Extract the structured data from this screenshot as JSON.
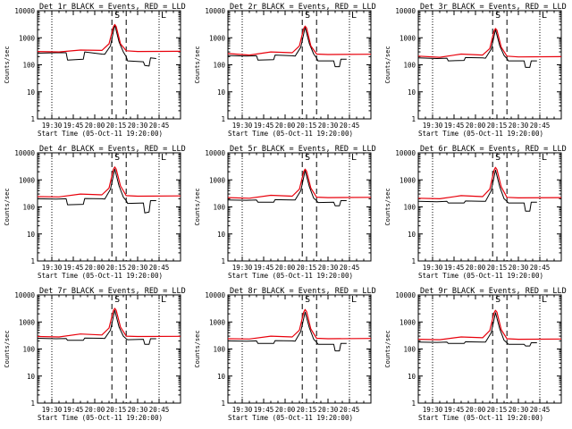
{
  "common": {
    "ylabel": "Counts/sec",
    "xlabel": "Start Time (05-Oct-11 19:20:00)",
    "title_suffix": "BLACK = Events, RED = LLD",
    "marker_letters": [
      "S",
      "L"
    ],
    "colors": {
      "events": "#000000",
      "lld": "#e8000b",
      "axis": "#000000"
    },
    "yscale": "log",
    "ylim": [
      1,
      10000
    ],
    "ytick_labels": [
      "1",
      "10",
      "100",
      "1000",
      "10000"
    ],
    "xtick_labels": [
      "19:30",
      "19:45",
      "20:00",
      "20:15",
      "20:30",
      "20:45"
    ],
    "dotted_lines": [
      "19:30",
      "20:45"
    ],
    "dashed_lines": [
      "20:12",
      "20:22"
    ]
  },
  "chart_data": [
    {
      "type": "line",
      "title": "Det 1r BLACK = Events, RED = LLD",
      "series": [
        {
          "name": "Events",
          "x": [
            "19:20",
            "19:33",
            "19:40",
            "19:41",
            "19:52",
            "19:53",
            "20:05",
            "20:07",
            "20:11",
            "20:14",
            "20:17",
            "20:20",
            "20:22",
            "20:23",
            "20:34",
            "20:35",
            "20:38",
            "20:39",
            "20:43"
          ],
          "values": [
            270,
            280,
            280,
            150,
            160,
            300,
            250,
            245,
            500,
            3000,
            700,
            300,
            200,
            140,
            130,
            95,
            90,
            180,
            170
          ]
        },
        {
          "name": "LLD",
          "x": [
            "19:20",
            "19:35",
            "19:50",
            "20:05",
            "20:10",
            "20:13",
            "20:14",
            "20:15",
            "20:18",
            "20:22",
            "20:30",
            "21:00"
          ],
          "values": [
            310,
            300,
            350,
            340,
            600,
            2500,
            3100,
            2600,
            600,
            330,
            310,
            315
          ]
        }
      ]
    },
    {
      "type": "line",
      "title": "Det 2r BLACK = Events, RED = LLD",
      "series": [
        {
          "name": "Events",
          "x": [
            "19:20",
            "19:33",
            "19:40",
            "19:41",
            "19:52",
            "19:53",
            "20:05",
            "20:07",
            "20:11",
            "20:14",
            "20:17",
            "20:20",
            "20:22",
            "20:23",
            "20:34",
            "20:35",
            "20:38",
            "20:39",
            "20:43"
          ],
          "values": [
            220,
            210,
            215,
            150,
            155,
            230,
            215,
            210,
            450,
            2400,
            600,
            250,
            180,
            140,
            140,
            85,
            85,
            160,
            160
          ]
        },
        {
          "name": "LLD",
          "x": [
            "19:20",
            "19:35",
            "19:50",
            "20:05",
            "20:10",
            "20:13",
            "20:14",
            "20:15",
            "20:18",
            "20:22",
            "20:30",
            "21:00"
          ],
          "values": [
            260,
            230,
            300,
            280,
            500,
            2200,
            2700,
            2300,
            500,
            250,
            240,
            245
          ]
        }
      ]
    },
    {
      "type": "line",
      "title": "Det 3r BLACK = Events, RED = LLD",
      "series": [
        {
          "name": "Events",
          "x": [
            "19:20",
            "19:33",
            "19:40",
            "19:41",
            "19:52",
            "19:53",
            "20:05",
            "20:07",
            "20:11",
            "20:14",
            "20:17",
            "20:20",
            "20:22",
            "20:23",
            "20:34",
            "20:35",
            "20:38",
            "20:39",
            "20:43"
          ],
          "values": [
            180,
            170,
            175,
            140,
            145,
            185,
            180,
            175,
            380,
            2000,
            500,
            220,
            170,
            140,
            140,
            80,
            80,
            140,
            140
          ]
        },
        {
          "name": "LLD",
          "x": [
            "19:20",
            "19:35",
            "19:50",
            "20:05",
            "20:10",
            "20:13",
            "20:14",
            "20:15",
            "20:18",
            "20:22",
            "20:30",
            "21:00"
          ],
          "values": [
            210,
            190,
            250,
            230,
            400,
            1800,
            2200,
            1900,
            450,
            210,
            195,
            200
          ]
        }
      ]
    },
    {
      "type": "line",
      "title": "Det 4r BLACK = Events, RED = LLD",
      "series": [
        {
          "name": "Events",
          "x": [
            "19:20",
            "19:33",
            "19:40",
            "19:41",
            "19:52",
            "19:53",
            "20:05",
            "20:07",
            "20:11",
            "20:14",
            "20:17",
            "20:20",
            "20:22",
            "20:23",
            "20:34",
            "20:35",
            "20:38",
            "20:39",
            "20:43"
          ],
          "values": [
            200,
            195,
            200,
            120,
            125,
            205,
            200,
            195,
            450,
            2500,
            600,
            230,
            170,
            135,
            140,
            60,
            65,
            170,
            170
          ]
        },
        {
          "name": "LLD",
          "x": [
            "19:20",
            "19:35",
            "19:50",
            "20:05",
            "20:10",
            "20:13",
            "20:14",
            "20:15",
            "20:18",
            "20:22",
            "20:30",
            "21:00"
          ],
          "values": [
            240,
            235,
            300,
            280,
            500,
            2400,
            3000,
            2500,
            600,
            260,
            250,
            255
          ]
        }
      ]
    },
    {
      "type": "line",
      "title": "Det 5r BLACK = Events, RED = LLD",
      "series": [
        {
          "name": "Events",
          "x": [
            "19:20",
            "19:33",
            "19:40",
            "19:41",
            "19:52",
            "19:53",
            "20:05",
            "20:07",
            "20:11",
            "20:14",
            "20:17",
            "20:20",
            "20:22",
            "20:23",
            "20:34",
            "20:35",
            "20:38",
            "20:39",
            "20:43"
          ],
          "values": [
            180,
            175,
            180,
            150,
            150,
            185,
            180,
            180,
            400,
            2200,
            550,
            210,
            170,
            145,
            150,
            110,
            110,
            170,
            170
          ]
        },
        {
          "name": "LLD",
          "x": [
            "19:20",
            "19:35",
            "19:50",
            "20:05",
            "20:10",
            "20:13",
            "20:14",
            "20:15",
            "20:18",
            "20:22",
            "20:30",
            "21:00"
          ],
          "values": [
            220,
            210,
            270,
            250,
            450,
            2000,
            2500,
            2100,
            500,
            230,
            220,
            225
          ]
        }
      ]
    },
    {
      "type": "line",
      "title": "Det 6r BLACK = Events, RED = LLD",
      "series": [
        {
          "name": "Events",
          "x": [
            "19:20",
            "19:33",
            "19:40",
            "19:41",
            "19:52",
            "19:53",
            "20:05",
            "20:07",
            "20:11",
            "20:14",
            "20:17",
            "20:20",
            "20:22",
            "20:23",
            "20:34",
            "20:35",
            "20:38",
            "20:39",
            "20:43"
          ],
          "values": [
            160,
            155,
            160,
            140,
            140,
            165,
            160,
            160,
            400,
            2300,
            550,
            200,
            160,
            140,
            140,
            70,
            70,
            150,
            150
          ]
        },
        {
          "name": "LLD",
          "x": [
            "19:20",
            "19:35",
            "19:50",
            "20:05",
            "20:10",
            "20:13",
            "20:14",
            "20:15",
            "20:18",
            "20:22",
            "20:30",
            "21:00"
          ],
          "values": [
            210,
            200,
            260,
            240,
            450,
            2300,
            2900,
            2400,
            550,
            225,
            215,
            220
          ]
        }
      ]
    },
    {
      "type": "line",
      "title": "Det 7r BLACK = Events, RED = LLD",
      "series": [
        {
          "name": "Events",
          "x": [
            "19:20",
            "19:33",
            "19:40",
            "19:41",
            "19:52",
            "19:53",
            "20:05",
            "20:07",
            "20:11",
            "20:14",
            "20:17",
            "20:20",
            "20:22",
            "20:23",
            "20:34",
            "20:35",
            "20:38",
            "20:39",
            "20:43"
          ],
          "values": [
            250,
            240,
            245,
            210,
            210,
            255,
            250,
            245,
            500,
            2700,
            650,
            300,
            240,
            220,
            230,
            150,
            150,
            240,
            240
          ]
        },
        {
          "name": "LLD",
          "x": [
            "19:20",
            "19:35",
            "19:50",
            "20:05",
            "20:10",
            "20:13",
            "20:14",
            "20:15",
            "20:18",
            "20:22",
            "20:30",
            "21:00"
          ],
          "values": [
            290,
            280,
            360,
            330,
            600,
            2600,
            3200,
            2700,
            650,
            300,
            290,
            295
          ]
        }
      ]
    },
    {
      "type": "line",
      "title": "Det 8r BLACK = Events, RED = LLD",
      "series": [
        {
          "name": "Events",
          "x": [
            "19:20",
            "19:33",
            "19:40",
            "19:41",
            "19:52",
            "19:53",
            "20:05",
            "20:07",
            "20:11",
            "20:14",
            "20:17",
            "20:20",
            "20:22",
            "20:23",
            "20:34",
            "20:35",
            "20:38",
            "20:39",
            "20:43"
          ],
          "values": [
            200,
            195,
            200,
            160,
            160,
            205,
            200,
            195,
            450,
            2300,
            600,
            230,
            180,
            150,
            150,
            85,
            85,
            160,
            160
          ]
        },
        {
          "name": "LLD",
          "x": [
            "19:20",
            "19:35",
            "19:50",
            "20:05",
            "20:10",
            "20:13",
            "20:14",
            "20:15",
            "20:18",
            "20:22",
            "20:30",
            "21:00"
          ],
          "values": [
            240,
            235,
            300,
            280,
            500,
            2300,
            2900,
            2400,
            550,
            250,
            240,
            245
          ]
        }
      ]
    },
    {
      "type": "line",
      "title": "Det 9r BLACK = Events, RED = LLD",
      "series": [
        {
          "name": "Events",
          "x": [
            "19:20",
            "19:33",
            "19:40",
            "19:41",
            "19:52",
            "19:53",
            "20:05",
            "20:07",
            "20:11",
            "20:14",
            "20:17",
            "20:20",
            "20:22",
            "20:23",
            "20:34",
            "20:35",
            "20:38",
            "20:39",
            "20:43"
          ],
          "values": [
            180,
            175,
            180,
            160,
            160,
            185,
            180,
            180,
            400,
            2200,
            550,
            210,
            170,
            150,
            150,
            130,
            130,
            170,
            170
          ]
        },
        {
          "name": "LLD",
          "x": [
            "19:20",
            "19:35",
            "19:50",
            "20:05",
            "20:10",
            "20:13",
            "20:14",
            "20:15",
            "20:18",
            "20:22",
            "20:30",
            "21:00"
          ],
          "values": [
            230,
            220,
            280,
            260,
            480,
            2200,
            2700,
            2300,
            520,
            240,
            230,
            235
          ]
        }
      ]
    }
  ]
}
